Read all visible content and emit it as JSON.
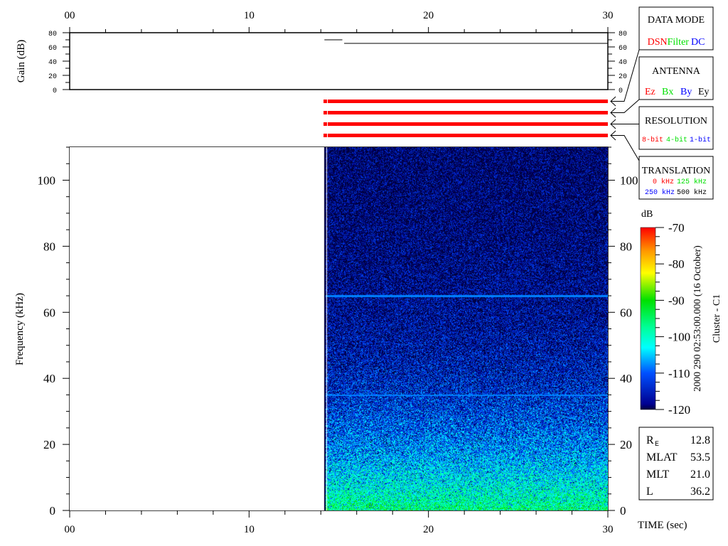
{
  "chart_data": {
    "type": "heatmap",
    "xlabel": "TIME (sec)",
    "x_ticks": [
      "00",
      "10",
      "20",
      "30"
    ],
    "xlim": [
      0,
      30
    ],
    "gain_panel": {
      "ylabel": "Gain (dB)",
      "ylim": [
        0,
        80
      ],
      "y_ticks": [
        "0",
        "20",
        "40",
        "60",
        "80"
      ],
      "series": [
        {
          "x": [
            14.2,
            15.2
          ],
          "y": [
            70,
            70
          ]
        },
        {
          "x": [
            15.3,
            30
          ],
          "y": [
            65,
            65
          ]
        }
      ]
    },
    "mode_bars": {
      "color": "#ff0000",
      "rows": 4,
      "x_start": 14.15,
      "x_end": 30
    },
    "spectrogram": {
      "ylabel": "Frequency (kHz)",
      "ylim": [
        0,
        110
      ],
      "y_ticks": [
        "0",
        "20",
        "40",
        "60",
        "80",
        "100"
      ],
      "data_start_sec": 14.15,
      "data_end_sec": 30,
      "description_levels": {
        "low_freq_dB": -95,
        "high_freq_dB": -120
      },
      "narrowband_lines_kHz": [
        65,
        35
      ]
    },
    "colorbar": {
      "label": "dB",
      "range": [
        -120,
        -70
      ],
      "ticks": [
        "-70",
        "-80",
        "-90",
        "-100",
        "-110",
        "-120"
      ]
    }
  },
  "side_label": {
    "timestamp": "2000 290 02:53:00.000 (16 October)",
    "spacecraft": "Cluster - C1"
  },
  "legend_boxes": {
    "data_mode": {
      "title": "DATA MODE",
      "items": [
        {
          "label": "DSN",
          "color": "#ff0000"
        },
        {
          "label": "Filter",
          "color": "#00e000"
        },
        {
          "label": "DC",
          "color": "#0000ff"
        }
      ]
    },
    "antenna": {
      "title": "ANTENNA",
      "items": [
        {
          "label": "Ez",
          "color": "#ff0000"
        },
        {
          "label": "Bx",
          "color": "#00e000"
        },
        {
          "label": "By",
          "color": "#0000ff"
        },
        {
          "label": "Ey",
          "color": "#000000"
        }
      ]
    },
    "resolution": {
      "title": "RESOLUTION",
      "items": [
        {
          "label": "8-bit",
          "color": "#ff0000"
        },
        {
          "label": "4-bit",
          "color": "#00e000"
        },
        {
          "label": "1-bit",
          "color": "#0000ff"
        }
      ]
    },
    "translation": {
      "title": "TRANSLATION",
      "items": [
        {
          "label": "0 kHz",
          "color": "#ff0000"
        },
        {
          "label": "125 kHz",
          "color": "#00e000"
        },
        {
          "label": "250 kHz",
          "color": "#0000ff"
        },
        {
          "label": "500 kHz",
          "color": "#000000"
        }
      ]
    }
  },
  "orbit_info": {
    "rows": [
      {
        "label": "R",
        "sub": "E",
        "value": "12.8"
      },
      {
        "label": "MLAT",
        "sub": "",
        "value": "53.5"
      },
      {
        "label": "MLT",
        "sub": "",
        "value": "21.0"
      },
      {
        "label": "L",
        "sub": "",
        "value": "36.2"
      }
    ]
  }
}
